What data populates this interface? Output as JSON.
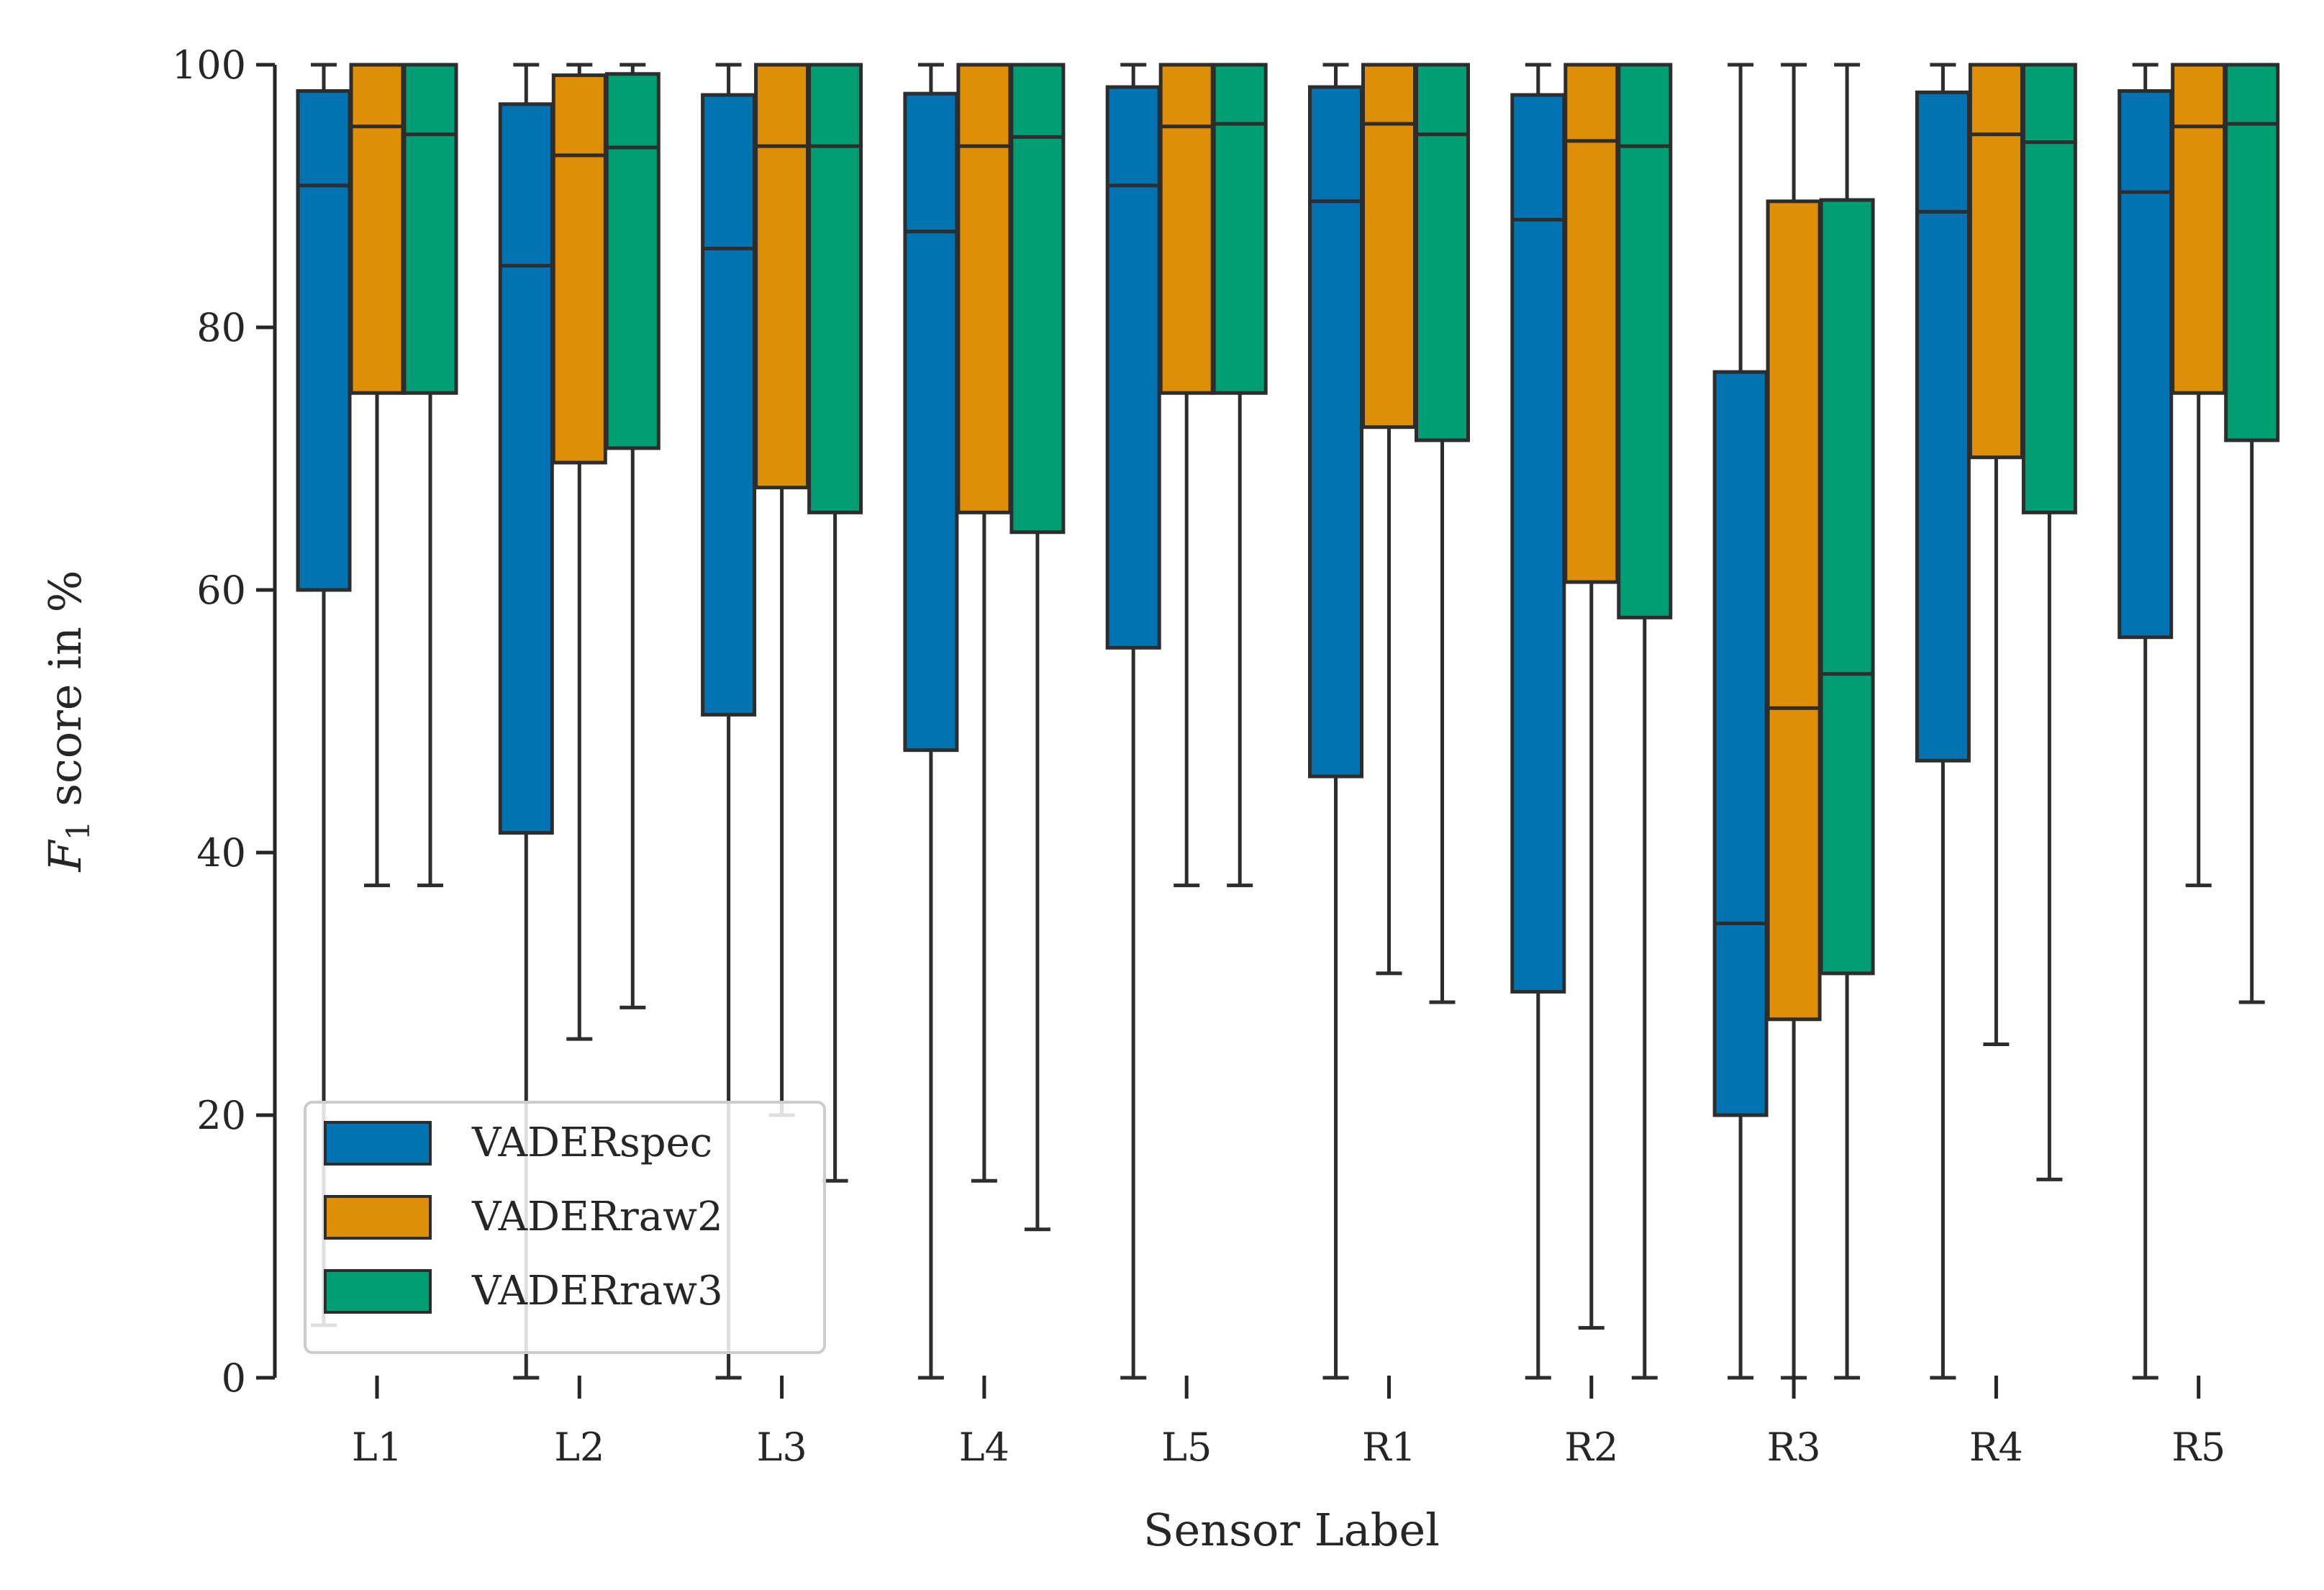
{
  "chart_data": {
    "type": "box",
    "title": "",
    "xlabel": "Sensor Label",
    "ylabel_prefix": "F",
    "ylabel_sub": "1",
    "ylabel_suffix": " score in %",
    "ylim": [
      0,
      100
    ],
    "yticks": [
      0,
      20,
      40,
      60,
      80,
      100
    ],
    "yticks_text": [
      "0",
      "20",
      "40",
      "60",
      "80",
      "100"
    ],
    "grid": false,
    "legend_position": "lower-left",
    "categories": [
      "L1",
      "L2",
      "L3",
      "L4",
      "L5",
      "R1",
      "R2",
      "R3",
      "R4",
      "R5"
    ],
    "series": [
      {
        "name": "VADERspec",
        "color": "#0173b2",
        "boxes": [
          {
            "whislo": 4,
            "q1": 60,
            "med": 90.8,
            "q3": 98,
            "whishi": 100
          },
          {
            "whislo": 0,
            "q1": 41.5,
            "med": 84.7,
            "q3": 97,
            "whishi": 100
          },
          {
            "whislo": 0,
            "q1": 50.5,
            "med": 86,
            "q3": 97.7,
            "whishi": 100
          },
          {
            "whislo": 0,
            "q1": 47.8,
            "med": 87.3,
            "q3": 97.8,
            "whishi": 100
          },
          {
            "whislo": 0,
            "q1": 55.6,
            "med": 90.8,
            "q3": 98.3,
            "whishi": 100
          },
          {
            "whislo": 0,
            "q1": 45.8,
            "med": 89.6,
            "q3": 98.3,
            "whishi": 100
          },
          {
            "whislo": 0,
            "q1": 29.4,
            "med": 88.2,
            "q3": 97.7,
            "whishi": 100
          },
          {
            "whislo": 0,
            "q1": 20,
            "med": 34.6,
            "q3": 76.6,
            "whishi": 100
          },
          {
            "whislo": 0,
            "q1": 47,
            "med": 88.8,
            "q3": 97.9,
            "whishi": 100
          },
          {
            "whislo": 0,
            "q1": 56.4,
            "med": 90.3,
            "q3": 98,
            "whishi": 100
          }
        ]
      },
      {
        "name": "VADERraw2",
        "color": "#de8f05",
        "boxes": [
          {
            "whislo": 37.5,
            "q1": 75,
            "med": 95.3,
            "q3": 100,
            "whishi": 100
          },
          {
            "whislo": 25.8,
            "q1": 69.7,
            "med": 93.1,
            "q3": 99.2,
            "whishi": 100
          },
          {
            "whislo": 20,
            "q1": 67.8,
            "med": 93.8,
            "q3": 100,
            "whishi": 100
          },
          {
            "whislo": 15,
            "q1": 65.9,
            "med": 93.8,
            "q3": 100,
            "whishi": 100
          },
          {
            "whislo": 37.5,
            "q1": 75,
            "med": 95.3,
            "q3": 100,
            "whishi": 100
          },
          {
            "whislo": 30.8,
            "q1": 72.4,
            "med": 95.5,
            "q3": 100,
            "whishi": 100
          },
          {
            "whislo": 3.8,
            "q1": 60.6,
            "med": 94.2,
            "q3": 100,
            "whishi": 100
          },
          {
            "whislo": 0,
            "q1": 27.3,
            "med": 51,
            "q3": 89.6,
            "whishi": 100
          },
          {
            "whislo": 25.4,
            "q1": 70.1,
            "med": 94.7,
            "q3": 100,
            "whishi": 100
          },
          {
            "whislo": 37.5,
            "q1": 75,
            "med": 95.3,
            "q3": 100,
            "whishi": 100
          }
        ]
      },
      {
        "name": "VADERraw3",
        "color": "#029e73",
        "boxes": [
          {
            "whislo": 37.5,
            "q1": 75,
            "med": 94.7,
            "q3": 100,
            "whishi": 100
          },
          {
            "whislo": 28.2,
            "q1": 70.8,
            "med": 93.7,
            "q3": 99.3,
            "whishi": 100
          },
          {
            "whislo": 15,
            "q1": 65.9,
            "med": 93.8,
            "q3": 100,
            "whishi": 100
          },
          {
            "whislo": 11.3,
            "q1": 64.4,
            "med": 94.5,
            "q3": 100,
            "whishi": 100
          },
          {
            "whislo": 37.5,
            "q1": 75,
            "med": 95.5,
            "q3": 100,
            "whishi": 100
          },
          {
            "whislo": 28.6,
            "q1": 71.4,
            "med": 94.7,
            "q3": 100,
            "whishi": 100
          },
          {
            "whislo": 0,
            "q1": 57.9,
            "med": 93.8,
            "q3": 100,
            "whishi": 100
          },
          {
            "whislo": 0,
            "q1": 30.8,
            "med": 53.6,
            "q3": 89.7,
            "whishi": 100
          },
          {
            "whislo": 15.1,
            "q1": 65.9,
            "med": 94.1,
            "q3": 100,
            "whishi": 100
          },
          {
            "whislo": 28.6,
            "q1": 71.4,
            "med": 95.5,
            "q3": 100,
            "whishi": 100
          }
        ]
      }
    ]
  }
}
